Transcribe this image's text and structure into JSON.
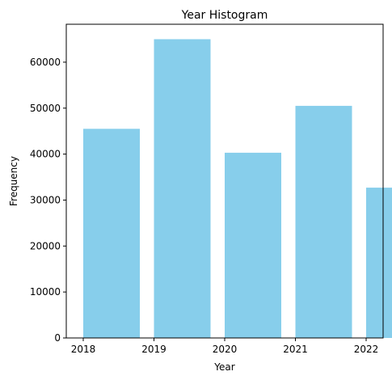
{
  "chart_data": {
    "type": "bar",
    "title": "Year Histogram",
    "xlabel": "Year",
    "ylabel": "Frequency",
    "bins": [
      {
        "start": 2018.0,
        "end": 2018.8,
        "value": 45500
      },
      {
        "start": 2019.0,
        "end": 2019.8,
        "value": 65000
      },
      {
        "start": 2020.0,
        "end": 2020.8,
        "value": 40300
      },
      {
        "start": 2021.0,
        "end": 2021.8,
        "value": 50500
      },
      {
        "start": 2022.0,
        "end": 2022.8,
        "value": 32700
      }
    ],
    "xticks": [
      2018,
      2019,
      2020,
      2021,
      2022
    ],
    "xtick_labels": [
      "2018",
      "2019",
      "2020",
      "2021",
      "2022"
    ],
    "yticks": [
      0,
      10000,
      20000,
      30000,
      40000,
      50000,
      60000
    ],
    "ytick_labels": [
      "0",
      "10000",
      "20000",
      "30000",
      "40000",
      "50000",
      "60000"
    ],
    "xlim": [
      2017.76,
      2022.24
    ],
    "ylim": [
      0,
      68250
    ],
    "bar_color": "#87ceeb",
    "grid": false,
    "legend": "none"
  }
}
